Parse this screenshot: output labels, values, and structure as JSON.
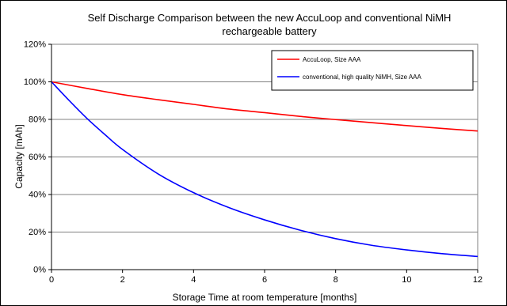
{
  "chart_data": {
    "type": "line",
    "title_lines": [
      "Self Discharge Comparison between the new AccuLoop and conventional NiMH",
      "rechargeable battery"
    ],
    "xlabel": "Storage Time at room temperature [months]",
    "ylabel": "Capacity [mAh]",
    "xlim": [
      0,
      12
    ],
    "ylim": [
      0,
      120
    ],
    "x_ticks": [
      "0",
      "2",
      "4",
      "6",
      "8",
      "10",
      "12"
    ],
    "y_ticks": [
      "0%",
      "20%",
      "40%",
      "60%",
      "80%",
      "100%",
      "120%"
    ],
    "grid": true,
    "legend_position": "top-right",
    "series": [
      {
        "name": "AccuLoop, Size AAA",
        "color": "#ff0000",
        "x": [
          0,
          1,
          2,
          3,
          4,
          5,
          6,
          7,
          8,
          9,
          10,
          11,
          12
        ],
        "y": [
          100,
          96.5,
          93.2,
          90.5,
          88,
          85.5,
          83.6,
          81.6,
          79.9,
          78.3,
          76.7,
          75.2,
          73.8
        ]
      },
      {
        "name": "conventional, high quality NiMH, Size AAA",
        "color": "#0000ff",
        "x": [
          0,
          0.5,
          1,
          1.5,
          2,
          3,
          4,
          5,
          6,
          7,
          8,
          9,
          10,
          11,
          12
        ],
        "y": [
          100,
          90,
          80.5,
          72,
          64,
          51,
          41,
          33,
          26.5,
          21,
          16.5,
          13,
          10.5,
          8.5,
          7
        ]
      }
    ]
  }
}
